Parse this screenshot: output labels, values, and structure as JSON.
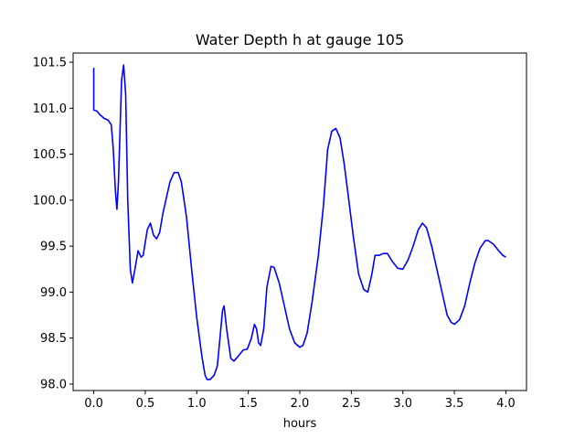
{
  "chart_data": {
    "type": "line",
    "title": "Water Depth h at gauge 105",
    "xlabel": "hours",
    "ylabel": "",
    "xlim": [
      -0.2,
      4.2
    ],
    "ylim": [
      97.93,
      101.6
    ],
    "xticks": [
      0.0,
      0.5,
      1.0,
      1.5,
      2.0,
      2.5,
      3.0,
      3.5,
      4.0
    ],
    "xtick_labels": [
      "0.0",
      "0.5",
      "1.0",
      "1.5",
      "2.0",
      "2.5",
      "3.0",
      "3.5",
      "4.0"
    ],
    "yticks": [
      98.0,
      98.5,
      99.0,
      99.5,
      100.0,
      100.5,
      101.0,
      101.5
    ],
    "ytick_labels": [
      "98.0",
      "98.5",
      "99.0",
      "99.5",
      "100.0",
      "100.5",
      "101.0",
      "101.5"
    ],
    "grid": false,
    "series": [
      {
        "color": "#0000ff",
        "points": [
          [
            0.0,
            101.44
          ],
          [
            0.0,
            100.98
          ],
          [
            0.03,
            100.97
          ],
          [
            0.06,
            100.93
          ],
          [
            0.1,
            100.89
          ],
          [
            0.14,
            100.87
          ],
          [
            0.17,
            100.82
          ],
          [
            0.19,
            100.55
          ],
          [
            0.21,
            100.1
          ],
          [
            0.225,
            99.9
          ],
          [
            0.24,
            100.2
          ],
          [
            0.27,
            101.3
          ],
          [
            0.29,
            101.47
          ],
          [
            0.31,
            101.15
          ],
          [
            0.33,
            100.0
          ],
          [
            0.355,
            99.25
          ],
          [
            0.375,
            99.1
          ],
          [
            0.4,
            99.25
          ],
          [
            0.43,
            99.45
          ],
          [
            0.46,
            99.38
          ],
          [
            0.48,
            99.4
          ],
          [
            0.52,
            99.68
          ],
          [
            0.55,
            99.75
          ],
          [
            0.58,
            99.62
          ],
          [
            0.61,
            99.58
          ],
          [
            0.64,
            99.65
          ],
          [
            0.67,
            99.85
          ],
          [
            0.7,
            100.0
          ],
          [
            0.74,
            100.2
          ],
          [
            0.78,
            100.3
          ],
          [
            0.82,
            100.3
          ],
          [
            0.85,
            100.2
          ],
          [
            0.9,
            99.82
          ],
          [
            0.95,
            99.25
          ],
          [
            1.0,
            98.72
          ],
          [
            1.05,
            98.3
          ],
          [
            1.08,
            98.1
          ],
          [
            1.1,
            98.05
          ],
          [
            1.13,
            98.05
          ],
          [
            1.17,
            98.1
          ],
          [
            1.2,
            98.2
          ],
          [
            1.225,
            98.5
          ],
          [
            1.25,
            98.8
          ],
          [
            1.265,
            98.85
          ],
          [
            1.29,
            98.6
          ],
          [
            1.33,
            98.28
          ],
          [
            1.36,
            98.25
          ],
          [
            1.4,
            98.3
          ],
          [
            1.45,
            98.37
          ],
          [
            1.49,
            98.38
          ],
          [
            1.53,
            98.5
          ],
          [
            1.56,
            98.65
          ],
          [
            1.58,
            98.6
          ],
          [
            1.6,
            98.45
          ],
          [
            1.62,
            98.42
          ],
          [
            1.65,
            98.6
          ],
          [
            1.68,
            99.05
          ],
          [
            1.72,
            99.28
          ],
          [
            1.75,
            99.27
          ],
          [
            1.8,
            99.1
          ],
          [
            1.85,
            98.85
          ],
          [
            1.9,
            98.6
          ],
          [
            1.95,
            98.45
          ],
          [
            2.0,
            98.4
          ],
          [
            2.03,
            98.42
          ],
          [
            2.07,
            98.55
          ],
          [
            2.12,
            98.9
          ],
          [
            2.18,
            99.4
          ],
          [
            2.23,
            99.95
          ],
          [
            2.27,
            100.55
          ],
          [
            2.31,
            100.75
          ],
          [
            2.35,
            100.78
          ],
          [
            2.39,
            100.68
          ],
          [
            2.43,
            100.4
          ],
          [
            2.47,
            100.05
          ],
          [
            2.52,
            99.6
          ],
          [
            2.57,
            99.2
          ],
          [
            2.62,
            99.03
          ],
          [
            2.66,
            99.0
          ],
          [
            2.7,
            99.2
          ],
          [
            2.73,
            99.4
          ],
          [
            2.77,
            99.4
          ],
          [
            2.81,
            99.42
          ],
          [
            2.85,
            99.42
          ],
          [
            2.9,
            99.33
          ],
          [
            2.95,
            99.26
          ],
          [
            3.0,
            99.25
          ],
          [
            3.05,
            99.35
          ],
          [
            3.1,
            99.5
          ],
          [
            3.15,
            99.68
          ],
          [
            3.19,
            99.75
          ],
          [
            3.23,
            99.7
          ],
          [
            3.28,
            99.5
          ],
          [
            3.33,
            99.25
          ],
          [
            3.38,
            99.0
          ],
          [
            3.43,
            98.75
          ],
          [
            3.47,
            98.67
          ],
          [
            3.5,
            98.65
          ],
          [
            3.55,
            98.7
          ],
          [
            3.6,
            98.85
          ],
          [
            3.65,
            99.1
          ],
          [
            3.7,
            99.32
          ],
          [
            3.75,
            99.48
          ],
          [
            3.8,
            99.56
          ],
          [
            3.83,
            99.56
          ],
          [
            3.88,
            99.52
          ],
          [
            3.93,
            99.45
          ],
          [
            3.97,
            99.4
          ],
          [
            4.0,
            99.38
          ]
        ]
      }
    ]
  }
}
